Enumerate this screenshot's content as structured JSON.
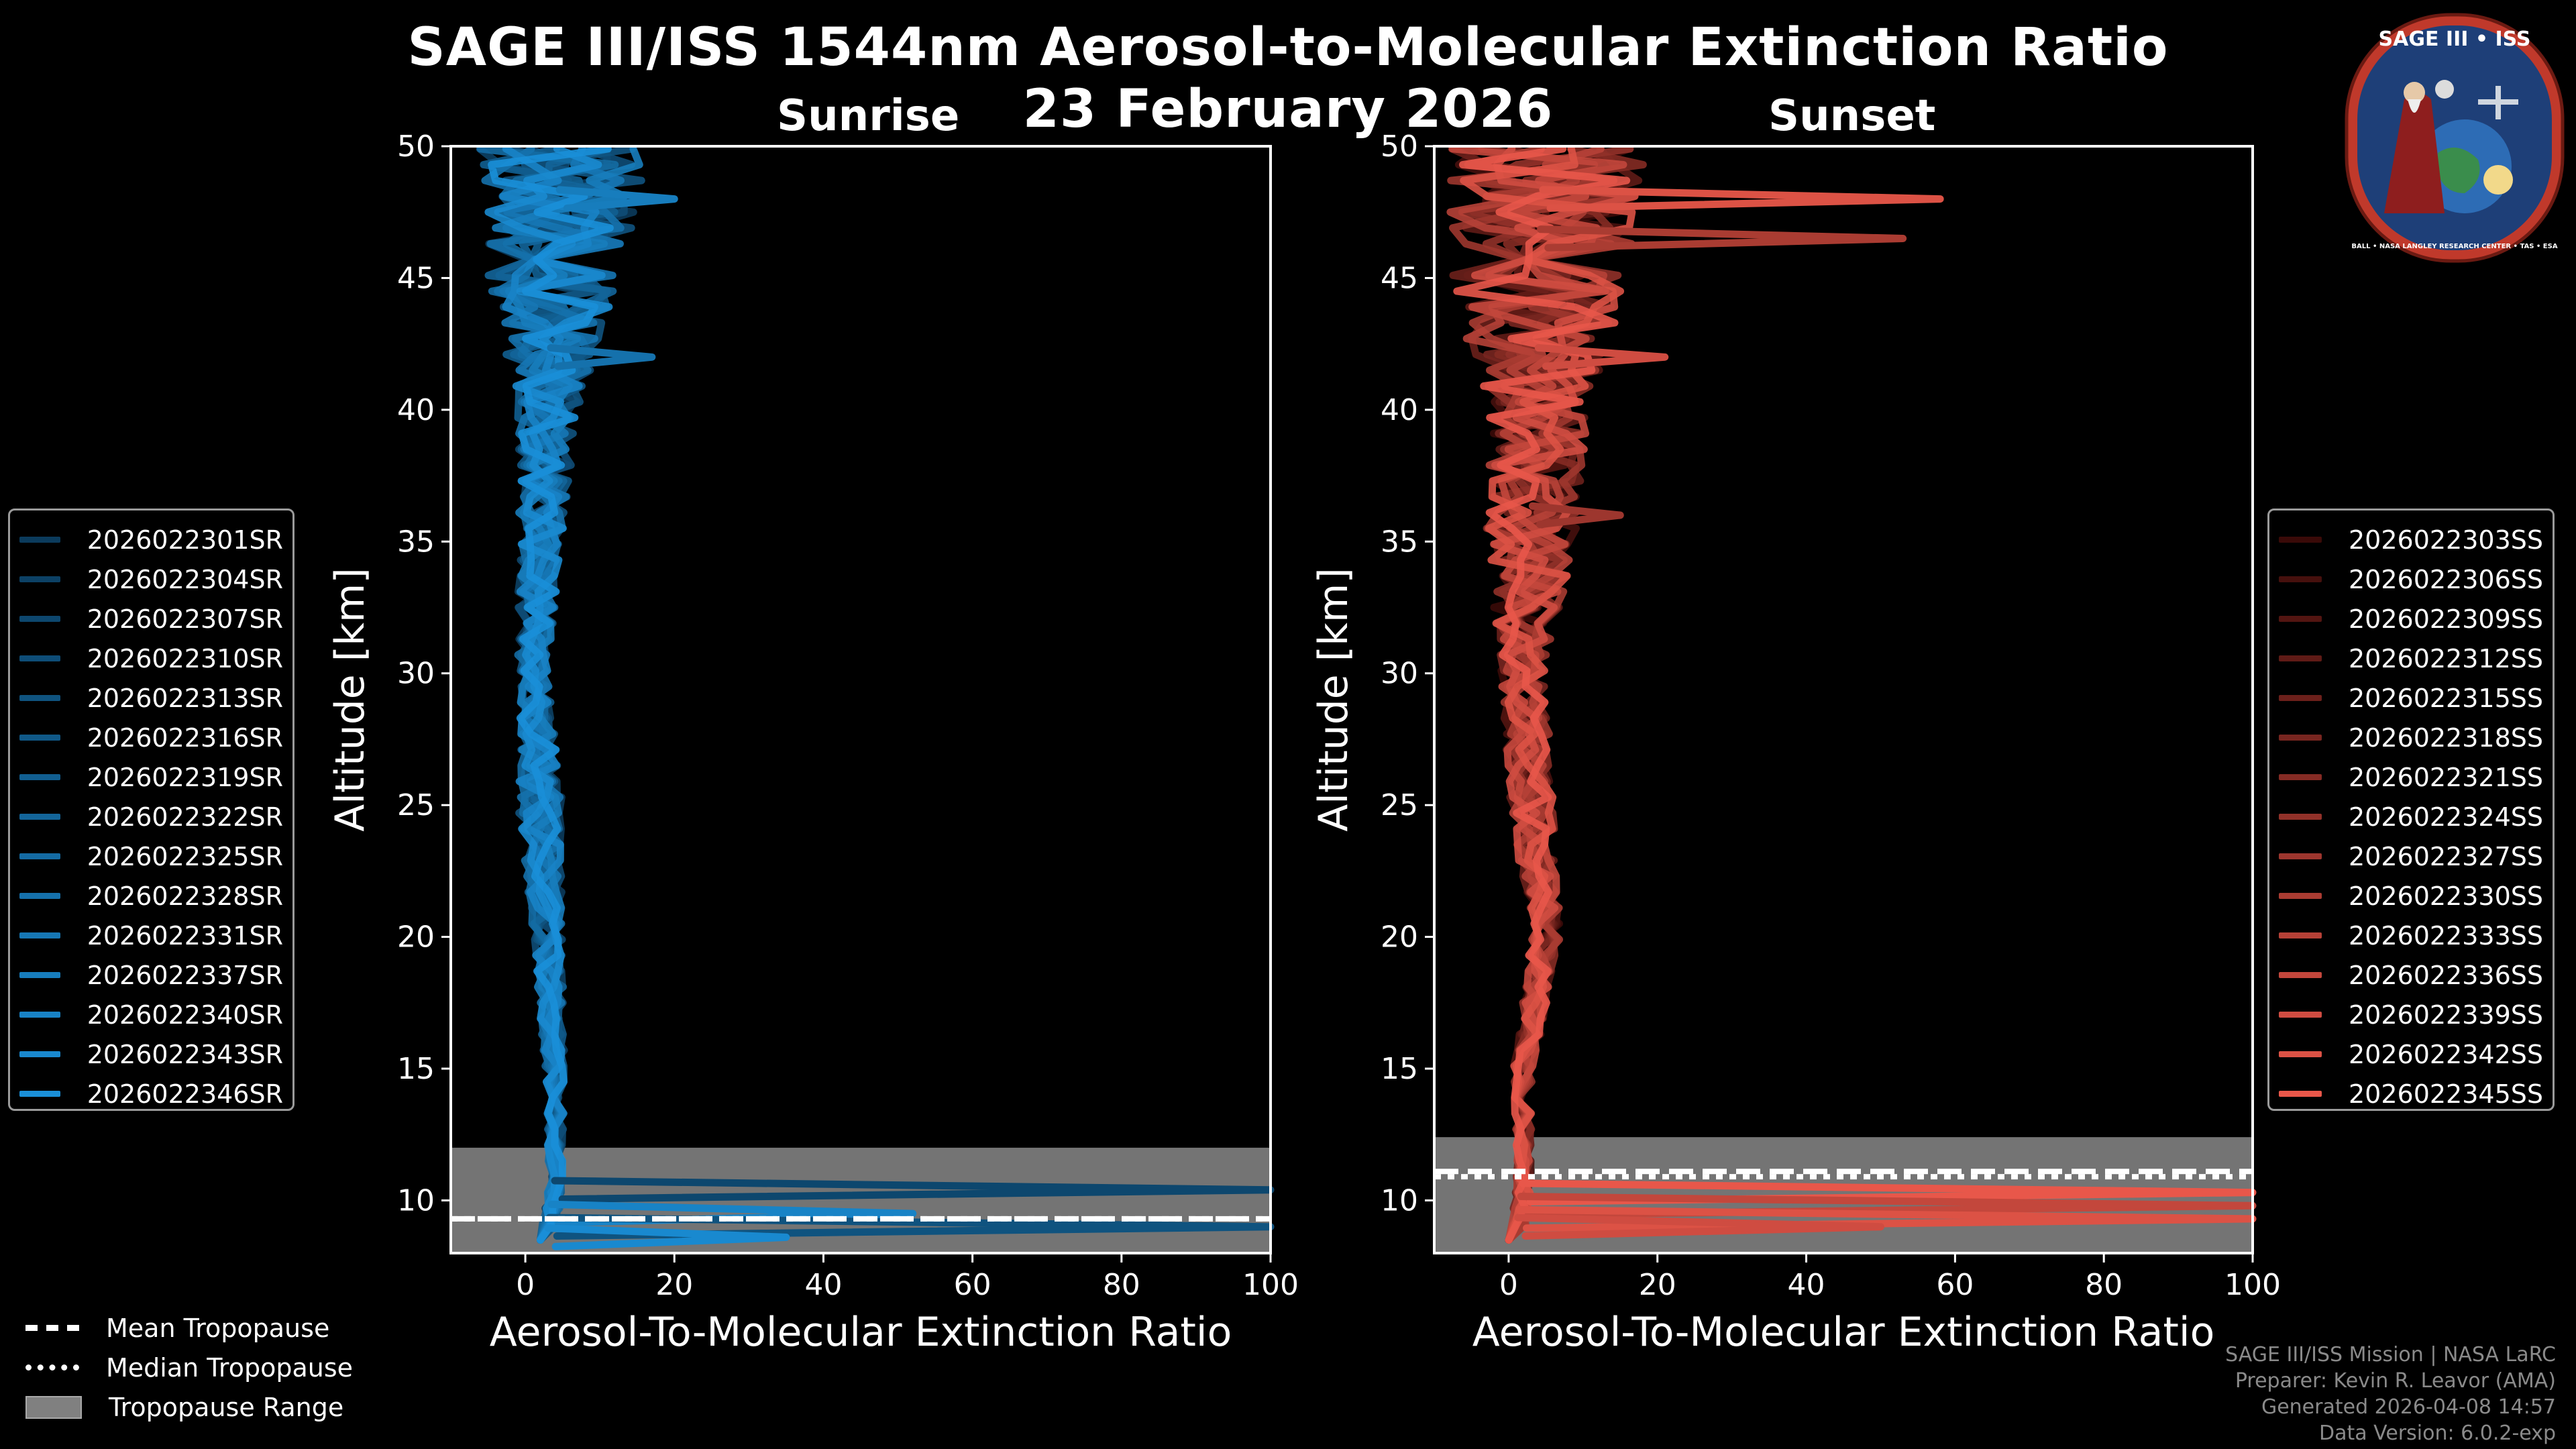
{
  "title": "SAGE III/ISS 1544nm Aerosol-to-Molecular Extinction Ratio",
  "date": "23 February 2026",
  "logo_text": "SAGE III • ISS",
  "logo_ring_text": "BALL • NASA LANGLEY RESEARCH CENTER • TAS • ESA",
  "chart_data": [
    {
      "type": "line",
      "title": "Sunrise",
      "xlabel": "Aerosol-To-Molecular Extinction Ratio",
      "ylabel": "Altitude [km]",
      "xlim": [
        -10,
        100
      ],
      "ylim": [
        8,
        50
      ],
      "xticks": [
        0,
        20,
        40,
        60,
        80,
        100
      ],
      "yticks": [
        10,
        15,
        20,
        25,
        30,
        35,
        40,
        45,
        50
      ],
      "tropopause": {
        "mean": 9.3,
        "median": 9.3,
        "range": [
          8,
          12
        ]
      },
      "color_dark": "#0b3b5c",
      "color_light": "#1a8fd8",
      "series": [
        {
          "name": "2026022301SR"
        },
        {
          "name": "2026022304SR"
        },
        {
          "name": "2026022307SR"
        },
        {
          "name": "2026022310SR"
        },
        {
          "name": "2026022313SR"
        },
        {
          "name": "2026022316SR"
        },
        {
          "name": "2026022319SR"
        },
        {
          "name": "2026022322SR"
        },
        {
          "name": "2026022325SR"
        },
        {
          "name": "2026022328SR"
        },
        {
          "name": "2026022331SR"
        },
        {
          "name": "2026022337SR"
        },
        {
          "name": "2026022340SR"
        },
        {
          "name": "2026022343SR"
        },
        {
          "name": "2026022346SR"
        }
      ],
      "profile_shape": {
        "base": [
          [
            8.5,
            3
          ],
          [
            10.5,
            4
          ],
          [
            15,
            4
          ],
          [
            20,
            3
          ],
          [
            25,
            2
          ],
          [
            30,
            1
          ],
          [
            35,
            2
          ],
          [
            40,
            3
          ],
          [
            45,
            4
          ],
          [
            50,
            5
          ]
        ],
        "spread": [
          [
            8,
            1
          ],
          [
            12,
            1
          ],
          [
            20,
            2
          ],
          [
            25,
            3
          ],
          [
            30,
            2
          ],
          [
            35,
            3
          ],
          [
            40,
            4
          ],
          [
            45,
            9
          ],
          [
            50,
            12
          ]
        ]
      },
      "spikes": [
        {
          "alt": 10.4,
          "to_x": 100,
          "series": 2
        },
        {
          "alt": 9.5,
          "to_x": 52,
          "series": 12
        },
        {
          "alt": 9.0,
          "to_x": 100,
          "series": 4
        },
        {
          "alt": 8.6,
          "to_x": 35,
          "series": 13
        },
        {
          "alt": 42,
          "to_x": 17,
          "series": 9
        },
        {
          "alt": 48,
          "to_x": 20,
          "series": 11
        }
      ]
    },
    {
      "type": "line",
      "title": "Sunset",
      "xlabel": "Aerosol-To-Molecular Extinction Ratio",
      "ylabel": "Altitude [km]",
      "xlim": [
        -10,
        100
      ],
      "ylim": [
        8,
        50
      ],
      "xticks": [
        0,
        20,
        40,
        60,
        80,
        100
      ],
      "yticks": [
        10,
        15,
        20,
        25,
        30,
        35,
        40,
        45,
        50
      ],
      "tropopause": {
        "mean": 11.1,
        "median": 10.9,
        "range": [
          8,
          12.4
        ]
      },
      "color_dark": "#3a0a08",
      "color_light": "#e8574a",
      "series": [
        {
          "name": "2026022303SS"
        },
        {
          "name": "2026022306SS"
        },
        {
          "name": "2026022309SS"
        },
        {
          "name": "2026022312SS"
        },
        {
          "name": "2026022315SS"
        },
        {
          "name": "2026022318SS"
        },
        {
          "name": "2026022321SS"
        },
        {
          "name": "2026022324SS"
        },
        {
          "name": "2026022327SS"
        },
        {
          "name": "2026022330SS"
        },
        {
          "name": "2026022333SS"
        },
        {
          "name": "2026022336SS"
        },
        {
          "name": "2026022339SS"
        },
        {
          "name": "2026022342SS"
        },
        {
          "name": "2026022345SS"
        }
      ],
      "profile_shape": {
        "base": [
          [
            8.5,
            1
          ],
          [
            10.5,
            2
          ],
          [
            15,
            2
          ],
          [
            20,
            5
          ],
          [
            25,
            3
          ],
          [
            30,
            2
          ],
          [
            35,
            3
          ],
          [
            40,
            4
          ],
          [
            45,
            4
          ],
          [
            50,
            5
          ]
        ],
        "spread": [
          [
            8,
            1
          ],
          [
            12,
            1
          ],
          [
            20,
            2
          ],
          [
            25,
            3
          ],
          [
            30,
            3
          ],
          [
            35,
            6
          ],
          [
            40,
            7
          ],
          [
            45,
            12
          ],
          [
            50,
            14
          ]
        ]
      },
      "spikes": [
        {
          "alt": 10.3,
          "to_x": 100,
          "series": 14
        },
        {
          "alt": 9.8,
          "to_x": 100,
          "series": 11
        },
        {
          "alt": 9.3,
          "to_x": 100,
          "series": 13
        },
        {
          "alt": 9.0,
          "to_x": 50,
          "series": 12
        },
        {
          "alt": 48,
          "to_x": 58,
          "series": 13
        },
        {
          "alt": 46.5,
          "to_x": 53,
          "series": 9
        },
        {
          "alt": 42,
          "to_x": 21,
          "series": 12
        },
        {
          "alt": 36,
          "to_x": 15,
          "series": 8
        }
      ]
    }
  ],
  "bottom_legend": {
    "mean": "Mean Tropopause",
    "median": "Median Tropopause",
    "range": "Tropopause Range"
  },
  "credits": {
    "line1": "SAGE III/ISS Mission | NASA LaRC",
    "line2": "Preparer: Kevin R. Leavor (AMA)",
    "line3": "Generated 2026-04-08 14:57",
    "line4": "Data Version: 6.0.2-exp"
  }
}
